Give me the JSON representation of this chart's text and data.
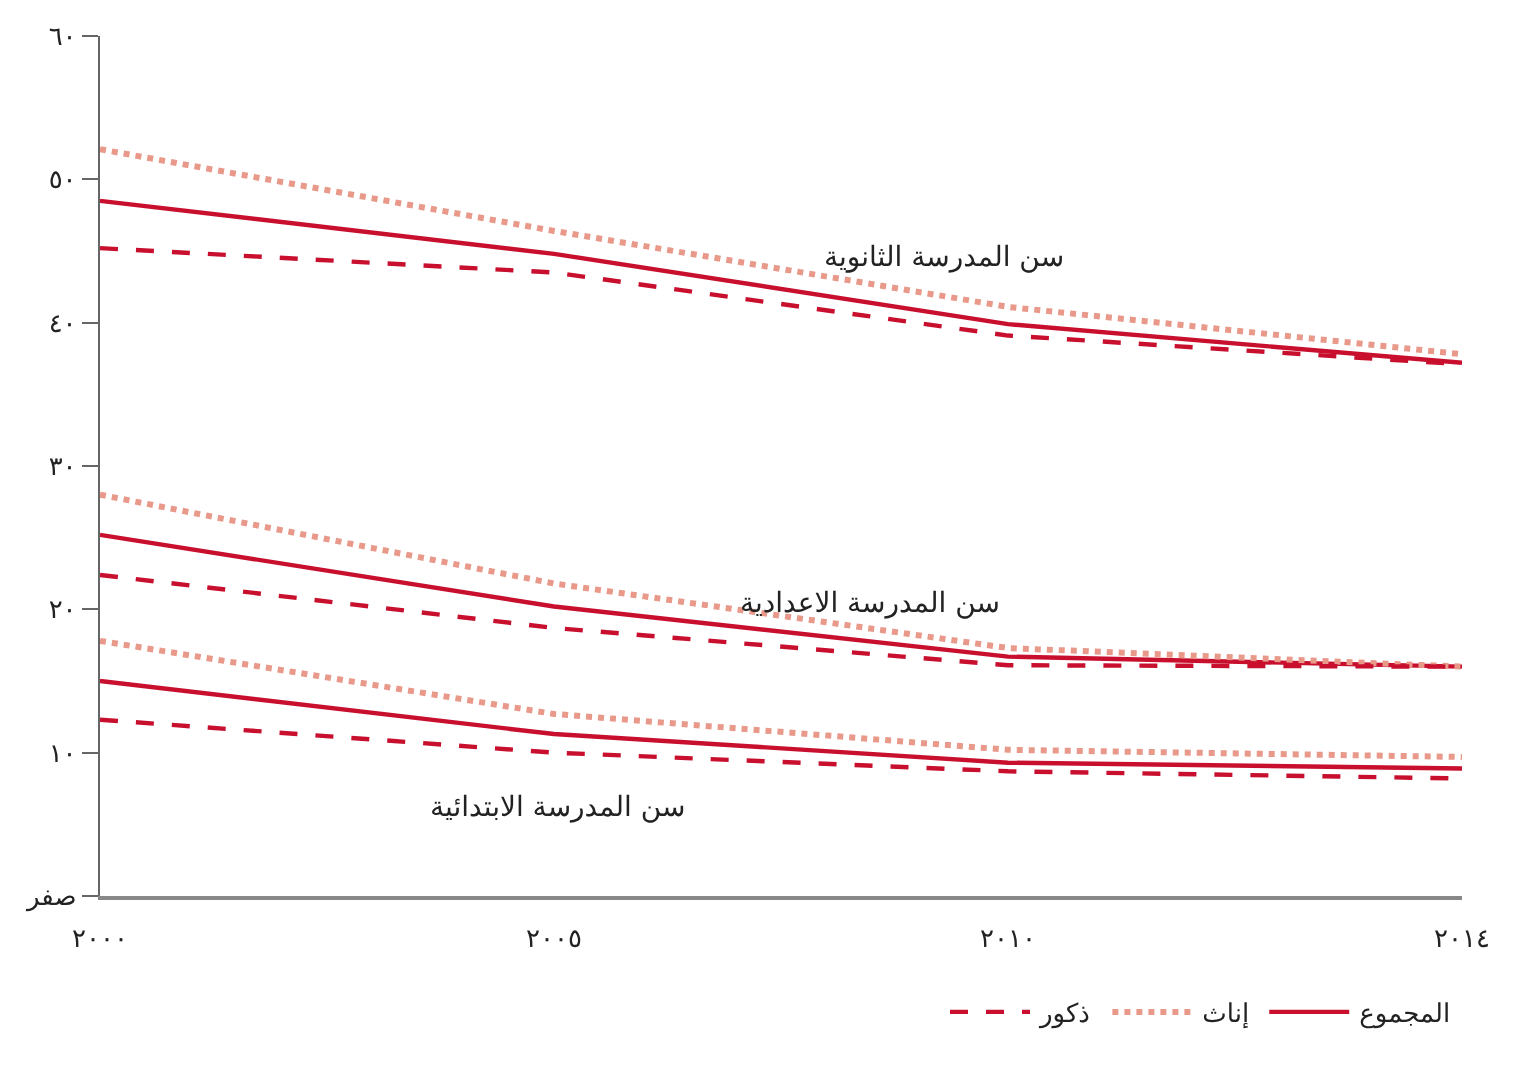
{
  "chart_data": {
    "type": "line",
    "categories": [
      "٢٠٠٠",
      "٢٠٠٥",
      "٢٠١٠",
      "٢٠١٤"
    ],
    "ylim": [
      0,
      60
    ],
    "yticks": [
      {
        "value": 0,
        "label": "صفر"
      },
      {
        "value": 10,
        "label": "١٠"
      },
      {
        "value": 20,
        "label": "٢٠"
      },
      {
        "value": 30,
        "label": "٣٠"
      },
      {
        "value": 40,
        "label": "٤٠"
      },
      {
        "value": 50,
        "label": "٥٠"
      },
      {
        "value": 60,
        "label": "٦٠"
      }
    ],
    "grid": false,
    "legend": "bottom",
    "marker": "none",
    "series": [
      {
        "name": "المجموع",
        "color": "#c8102e",
        "line_style": "solid",
        "values": [
          48.5,
          44.8,
          39.9,
          37.2
        ]
      },
      {
        "name": "إناث",
        "color": "#e8998a",
        "line_style": "dotted",
        "values": [
          52.1,
          46.4,
          41.1,
          37.8
        ]
      },
      {
        "name": "ذكور",
        "color": "#c8102e",
        "line_style": "dashed",
        "values": [
          45.2,
          43.5,
          39.1,
          37.1
        ]
      },
      {
        "color": "#c8102e",
        "line_style": "solid",
        "values": [
          25.2,
          20.2,
          16.7,
          16.0
        ]
      },
      {
        "color": "#e8998a",
        "line_style": "dotted",
        "values": [
          28.0,
          21.8,
          17.3,
          16.0
        ]
      },
      {
        "color": "#c8102e",
        "line_style": "dashed",
        "values": [
          22.4,
          18.7,
          16.1,
          16.0
        ]
      },
      {
        "color": "#c8102e",
        "line_style": "solid",
        "values": [
          15.0,
          11.3,
          9.3,
          8.9
        ]
      },
      {
        "color": "#e8998a",
        "line_style": "dotted",
        "values": [
          17.8,
          12.7,
          10.2,
          9.7
        ]
      },
      {
        "color": "#c8102e",
        "line_style": "dashed",
        "values": [
          12.3,
          10.0,
          8.7,
          8.2
        ]
      }
    ],
    "annotations": [
      "سن المدرسة الثانوية",
      "سن المدرسة الاعدادية",
      "سن المدرسة الابتدائية"
    ]
  }
}
